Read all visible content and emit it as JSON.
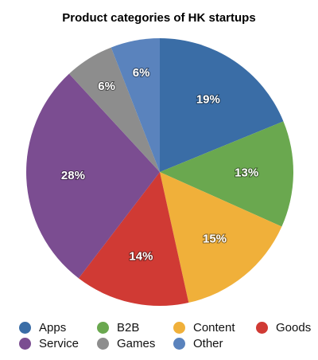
{
  "chart_data": {
    "type": "pie",
    "title": "Product categories of HK startups",
    "categories": [
      "Apps",
      "B2B",
      "Content",
      "Goods",
      "Service",
      "Games",
      "Other"
    ],
    "values": [
      19,
      13,
      15,
      14,
      28,
      6,
      6
    ],
    "value_labels": [
      "19%",
      "13%",
      "15%",
      "14%",
      "28%",
      "6%",
      "6%"
    ],
    "colors": [
      "#3a6da6",
      "#6aa84f",
      "#f0b03a",
      "#d03a34",
      "#7b4d91",
      "#8d8d8d",
      "#5a83bd"
    ],
    "legend": {
      "placement": "bottom",
      "entries": [
        "Apps",
        "B2B",
        "Content",
        "Goods",
        "Service",
        "Games",
        "Other"
      ]
    }
  }
}
